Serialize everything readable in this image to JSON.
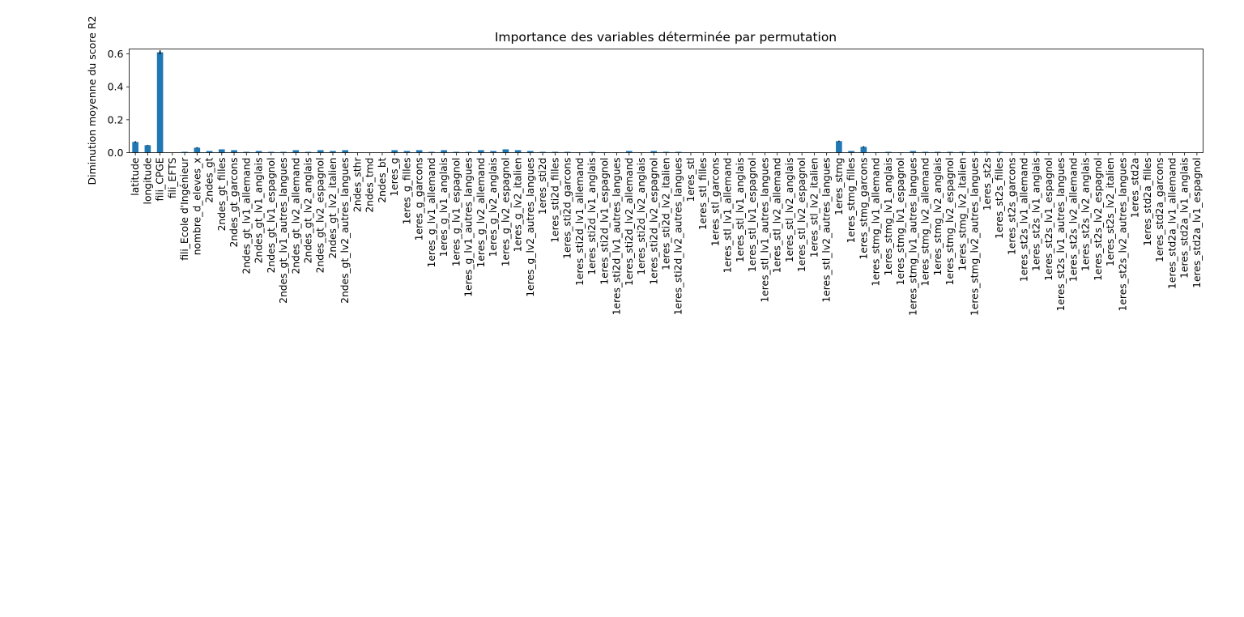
{
  "chart_data": {
    "type": "bar",
    "title": "Importance des variables déterminée par permutation",
    "xlabel": "",
    "ylabel": "Diminution moyenne du score R2",
    "ylim": [
      0,
      0.63
    ],
    "yticks": [
      "0.0",
      "0.2",
      "0.4",
      "0.6"
    ],
    "grid": false,
    "legend": "none",
    "bar_color": "#1f77b4",
    "categories": [
      "latitude",
      "longitude",
      "fili_CPGE",
      "fili_EFTS",
      "fili_Ecole d'Ingénieur",
      "nombre_d_eleves_x",
      "2ndes_gt",
      "2ndes_gt_filles",
      "2ndes_gt_garcons",
      "2ndes_gt_lv1_allemand",
      "2ndes_gt_lv1_anglais",
      "2ndes_gt_lv1_espagnol",
      "2ndes_gt_lv1_autres_langues",
      "2ndes_gt_lv2_allemand",
      "2ndes_gt_lv2_anglais",
      "2ndes_gt_lv2_espagnol",
      "2ndes_gt_lv2_italien",
      "2ndes_gt_lv2_autres_langues",
      "2ndes_sthr",
      "2ndes_tmd",
      "2ndes_bt",
      "1eres_g",
      "1eres_g_filles",
      "1eres_g_garcons",
      "1eres_g_lv1_allemand",
      "1eres_g_lv1_anglais",
      "1eres_g_lv1_espagnol",
      "1eres_g_lv1_autres_langues",
      "1eres_g_lv2_allemand",
      "1eres_g_lv2_anglais",
      "1eres_g_lv2_espagnol",
      "1eres_g_lv2_italien",
      "1eres_g_lv2_autres_langues",
      "1eres_sti2d",
      "1eres_sti2d_filles",
      "1eres_sti2d_garcons",
      "1eres_sti2d_lv1_allemand",
      "1eres_sti2d_lv1_anglais",
      "1eres_sti2d_lv1_espagnol",
      "1eres_sti2d_lv1_autres_langues",
      "1eres_sti2d_lv2_allemand",
      "1eres_sti2d_lv2_anglais",
      "1eres_sti2d_lv2_espagnol",
      "1eres_sti2d_lv2_italien",
      "1eres_sti2d_lv2_autres_langues",
      "1eres_stl",
      "1eres_stl_filles",
      "1eres_stl_garcons",
      "1eres_stl_lv1_allemand",
      "1eres_stl_lv1_anglais",
      "1eres_stl_lv1_espagnol",
      "1eres_stl_lv1_autres_langues",
      "1eres_stl_lv2_allemand",
      "1eres_stl_lv2_anglais",
      "1eres_stl_lv2_espagnol",
      "1eres_stl_lv2_italien",
      "1eres_stl_lv2_autres_langues",
      "1eres_stmg",
      "1eres_stmg_filles",
      "1eres_stmg_garcons",
      "1eres_stmg_lv1_allemand",
      "1eres_stmg_lv1_anglais",
      "1eres_stmg_lv1_espagnol",
      "1eres_stmg_lv1_autres_langues",
      "1eres_stmg_lv2_allemand",
      "1eres_stmg_lv2_anglais",
      "1eres_stmg_lv2_espagnol",
      "1eres_stmg_lv2_italien",
      "1eres_stmg_lv2_autres_langues",
      "1eres_st2s",
      "1eres_st2s_filles",
      "1eres_st2s_garcons",
      "1eres_st2s_lv1_allemand",
      "1eres_st2s_lv1_anglais",
      "1eres_st2s_lv1_espagnol",
      "1eres_st2s_lv1_autres_langues",
      "1eres_st2s_lv2_allemand",
      "1eres_st2s_lv2_anglais",
      "1eres_st2s_lv2_espagnol",
      "1eres_st2s_lv2_italien",
      "1eres_st2s_lv2_autres_langues",
      "1eres_std2a",
      "1eres_std2a_filles",
      "1eres_std2a_garcons",
      "1eres_std2a_lv1_allemand",
      "1eres_std2a_lv1_anglais",
      "1eres_std2a_lv1_espagnol"
    ],
    "values": [
      0.065,
      0.045,
      0.61,
      0,
      0.005,
      0.03,
      0.01,
      0.02,
      0.015,
      0.005,
      0.01,
      0.005,
      0.005,
      0.015,
      0.005,
      0.015,
      0.01,
      0.015,
      0,
      0,
      0,
      0.015,
      0.01,
      0.015,
      0.005,
      0.015,
      0.005,
      0.005,
      0.015,
      0.01,
      0.02,
      0.015,
      0.01,
      0.005,
      0.005,
      0.005,
      0.002,
      0.005,
      0.002,
      0.002,
      0.01,
      0.002,
      0.01,
      0.005,
      0.005,
      0,
      0,
      0,
      0,
      0,
      0,
      0,
      0,
      0,
      0,
      0,
      0,
      0.07,
      0.01,
      0.035,
      0.002,
      0.005,
      0.002,
      0.01,
      0.005,
      0.005,
      0.005,
      0.005,
      0.005,
      0.005,
      0.005,
      0.002,
      0.002,
      0.005,
      0.002,
      0.002,
      0.002,
      0.002,
      0.002,
      0.002,
      0.002,
      0,
      0,
      0,
      0,
      0,
      0
    ],
    "errors": [
      0.004,
      0.002,
      0.012,
      0,
      0,
      0.003,
      0,
      0,
      0,
      0,
      0,
      0,
      0,
      0,
      0,
      0,
      0,
      0,
      0,
      0,
      0,
      0,
      0,
      0,
      0,
      0,
      0,
      0,
      0,
      0,
      0,
      0,
      0,
      0,
      0,
      0,
      0,
      0,
      0,
      0,
      0,
      0,
      0,
      0,
      0,
      0,
      0,
      0,
      0,
      0,
      0,
      0,
      0,
      0,
      0,
      0,
      0,
      0.003,
      0,
      0.004,
      0,
      0,
      0,
      0,
      0,
      0,
      0,
      0,
      0,
      0,
      0,
      0,
      0,
      0,
      0,
      0,
      0,
      0,
      0,
      0,
      0,
      0,
      0,
      0,
      0,
      0,
      0
    ]
  }
}
